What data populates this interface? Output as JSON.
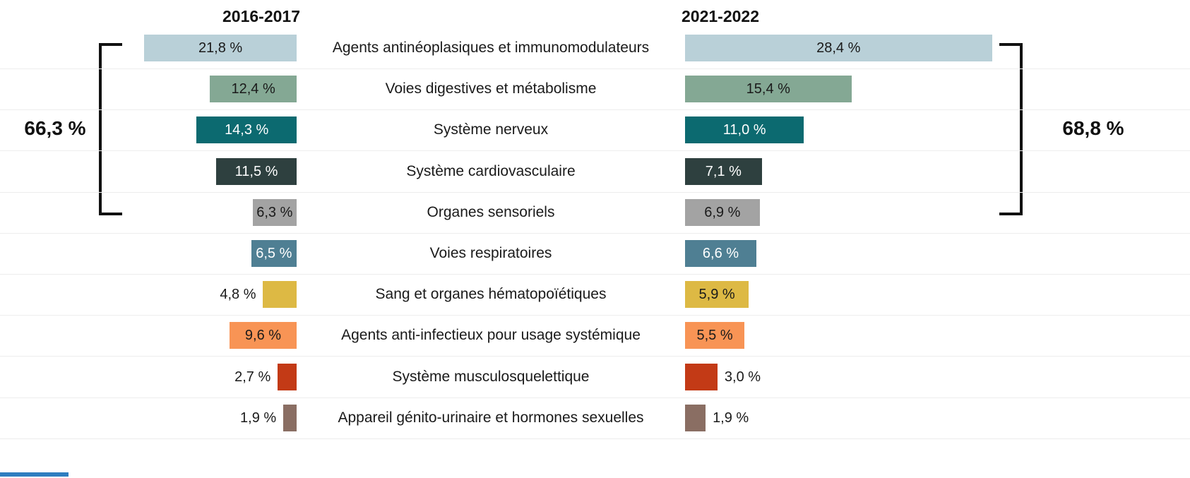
{
  "header": {
    "left_period": "2016-2017",
    "right_period": "2021-2022"
  },
  "summary": {
    "left_total": "66,3 %",
    "right_total": "68,8 %"
  },
  "accents": {
    "footer_strip_color": "#2f7ec0",
    "bracket_color": "#111111"
  },
  "chart_data": {
    "type": "bar",
    "variant": "diverging-butterfly-horizontal",
    "series_names": [
      "2016-2017",
      "2021-2022"
    ],
    "unit": "%",
    "bracket_group": {
      "from_row": 0,
      "to_row": 4,
      "left_total": 66.3,
      "right_total": 68.8
    },
    "rows": [
      {
        "category": "Agents antinéoplasiques et immunomodulateurs",
        "left_value": 21.8,
        "left_label": "21,8 %",
        "right_value": 28.4,
        "right_label": "28,4 %",
        "color": "#b9d0d8",
        "text_color": "#1a1a1a",
        "left_label_placement": "inside",
        "right_label_placement": "inside"
      },
      {
        "category": "Voies digestives et métabolisme",
        "left_value": 12.4,
        "left_label": "12,4 %",
        "right_value": 15.4,
        "right_label": "15,4 %",
        "color": "#84a894",
        "text_color": "#1a1a1a",
        "left_label_placement": "inside",
        "right_label_placement": "inside"
      },
      {
        "category": "Système nerveux",
        "left_value": 14.3,
        "left_label": "14,3 %",
        "right_value": 11.0,
        "right_label": "11,0 %",
        "color": "#0c6a70",
        "text_color": "#ffffff",
        "left_label_placement": "inside",
        "right_label_placement": "inside"
      },
      {
        "category": "Système cardiovasculaire",
        "left_value": 11.5,
        "left_label": "11,5 %",
        "right_value": 7.1,
        "right_label": "7,1 %",
        "color": "#2e403f",
        "text_color": "#ffffff",
        "left_label_placement": "inside",
        "right_label_placement": "inside"
      },
      {
        "category": "Organes sensoriels",
        "left_value": 6.3,
        "left_label": "6,3 %",
        "right_value": 6.9,
        "right_label": "6,9 %",
        "color": "#a3a3a3",
        "text_color": "#1a1a1a",
        "left_label_placement": "inside",
        "right_label_placement": "inside"
      },
      {
        "category": "Voies respiratoires",
        "left_value": 6.5,
        "left_label": "6,5 %",
        "right_value": 6.6,
        "right_label": "6,6 %",
        "color": "#4f7f93",
        "text_color": "#ffffff",
        "left_label_placement": "inside",
        "right_label_placement": "inside"
      },
      {
        "category": "Sang et organes hématopoïétiques",
        "left_value": 4.8,
        "left_label": "4,8 %",
        "right_value": 5.9,
        "right_label": "5,9 %",
        "color": "#ddb944",
        "text_color": "#1a1a1a",
        "left_label_placement": "outside",
        "right_label_placement": "inside"
      },
      {
        "category": "Agents anti-infectieux pour usage systémique",
        "left_value": 9.6,
        "left_label": "9,6 %",
        "right_value": 5.5,
        "right_label": "5,5 %",
        "color": "#f89455",
        "text_color": "#1a1a1a",
        "left_label_placement": "inside",
        "right_label_placement": "inside"
      },
      {
        "category": "Système musculosquelettique",
        "left_value": 2.7,
        "left_label": "2,7 %",
        "right_value": 3.0,
        "right_label": "3,0 %",
        "color": "#c33a16",
        "text_color": "#1a1a1a",
        "left_label_placement": "outside",
        "right_label_placement": "outside"
      },
      {
        "category": "Appareil génito-urinaire et hormones sexuelles",
        "left_value": 1.9,
        "left_label": "1,9 %",
        "right_value": 1.9,
        "right_label": "1,9 %",
        "color": "#8a6e63",
        "text_color": "#1a1a1a",
        "left_label_placement": "outside",
        "right_label_placement": "outside"
      }
    ]
  }
}
